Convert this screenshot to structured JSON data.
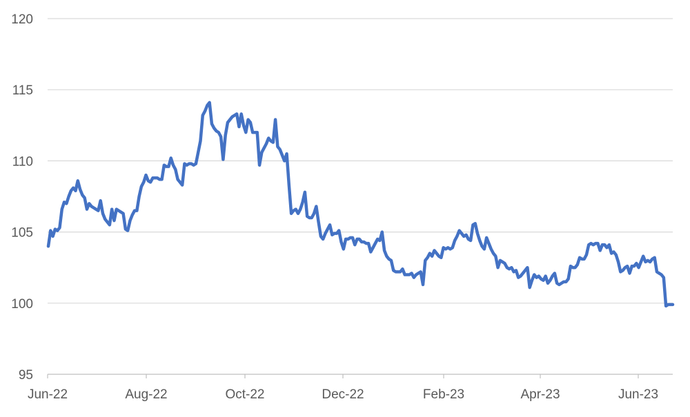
{
  "chart_data": {
    "type": "line",
    "title": "",
    "xlabel": "",
    "ylabel": "",
    "ylim": [
      95,
      120
    ],
    "y_ticks": [
      "95",
      "100",
      "105",
      "110",
      "115",
      "120"
    ],
    "x_tick_labels": [
      "Jun-22",
      "Aug-22",
      "Oct-22",
      "Dec-22",
      "Feb-23",
      "Apr-23",
      "Jun-23"
    ],
    "grid": "horizontal",
    "legend": "none",
    "line_color": "#4472C4",
    "grid_color": "#D9D9D9",
    "series": [
      {
        "values": [
          104.0,
          105.1,
          104.7,
          105.2,
          105.1,
          105.3,
          106.6,
          107.1,
          107.0,
          107.5,
          107.9,
          108.1,
          107.9,
          108.6,
          108.0,
          107.6,
          107.4,
          106.6,
          107.0,
          106.8,
          106.7,
          106.6,
          106.5,
          107.2,
          106.3,
          105.9,
          105.7,
          105.5,
          106.6,
          105.8,
          106.6,
          106.5,
          106.4,
          106.3,
          105.2,
          105.1,
          105.8,
          106.2,
          106.5,
          106.5,
          107.5,
          108.2,
          108.5,
          109.0,
          108.6,
          108.5,
          108.8,
          108.8,
          108.8,
          108.7,
          108.7,
          109.7,
          109.6,
          109.6,
          110.2,
          109.7,
          109.4,
          108.7,
          108.5,
          108.3,
          109.8,
          109.7,
          109.8,
          109.8,
          109.7,
          109.8,
          110.6,
          111.4,
          113.2,
          113.5,
          113.9,
          114.1,
          112.6,
          112.3,
          112.1,
          112.0,
          111.7,
          110.1,
          111.8,
          112.7,
          112.9,
          113.1,
          113.2,
          113.3,
          112.4,
          113.3,
          112.5,
          112.0,
          112.9,
          112.7,
          112.0,
          112.0,
          112.0,
          109.7,
          110.6,
          110.9,
          111.2,
          111.6,
          111.4,
          111.3,
          112.9,
          111.0,
          110.8,
          110.4,
          110.0,
          110.5,
          108.3,
          106.3,
          106.5,
          106.6,
          106.3,
          106.6,
          107.1,
          107.8,
          106.1,
          106.0,
          106.0,
          106.3,
          106.8,
          105.7,
          104.7,
          104.5,
          104.9,
          105.2,
          105.5,
          104.8,
          104.9,
          104.9,
          105.1,
          104.3,
          103.8,
          104.5,
          104.5,
          104.6,
          104.6,
          104.1,
          104.5,
          104.5,
          104.3,
          104.3,
          104.2,
          104.2,
          103.6,
          103.9,
          104.2,
          104.5,
          104.4,
          105.0,
          103.7,
          103.3,
          103.1,
          103.0,
          102.3,
          102.2,
          102.2,
          102.2,
          102.4,
          102.0,
          102.0,
          102.0,
          102.1,
          101.8,
          102.0,
          102.1,
          102.2,
          101.3,
          103.0,
          103.2,
          103.5,
          103.3,
          103.7,
          103.5,
          103.3,
          103.2,
          103.9,
          103.8,
          103.9,
          103.8,
          103.9,
          104.4,
          104.7,
          105.1,
          104.9,
          104.7,
          104.8,
          104.5,
          104.4,
          105.5,
          105.6,
          104.9,
          104.4,
          104.0,
          103.8,
          104.6,
          104.2,
          103.8,
          103.5,
          103.3,
          102.5,
          103.0,
          102.9,
          102.8,
          102.5,
          102.4,
          102.5,
          102.2,
          102.3,
          101.8,
          101.9,
          102.1,
          102.3,
          102.5,
          101.1,
          101.6,
          102.0,
          101.8,
          101.9,
          101.7,
          101.6,
          101.9,
          101.4,
          101.6,
          101.9,
          102.1,
          101.4,
          101.3,
          101.4,
          101.5,
          101.5,
          101.7,
          102.6,
          102.5,
          102.5,
          102.7,
          103.2,
          103.1,
          103.1,
          103.4,
          104.1,
          104.2,
          104.1,
          104.2,
          104.2,
          103.7,
          104.1,
          104.1,
          103.9,
          104.1,
          103.5,
          103.6,
          103.4,
          102.9,
          102.2,
          102.3,
          102.5,
          102.6,
          102.1,
          102.6,
          102.6,
          102.8,
          102.5,
          102.9,
          103.3,
          102.9,
          103.0,
          102.9,
          103.1,
          103.2,
          102.2,
          102.1,
          102.0,
          101.8,
          99.8,
          99.9,
          99.9,
          99.9
        ]
      }
    ]
  }
}
